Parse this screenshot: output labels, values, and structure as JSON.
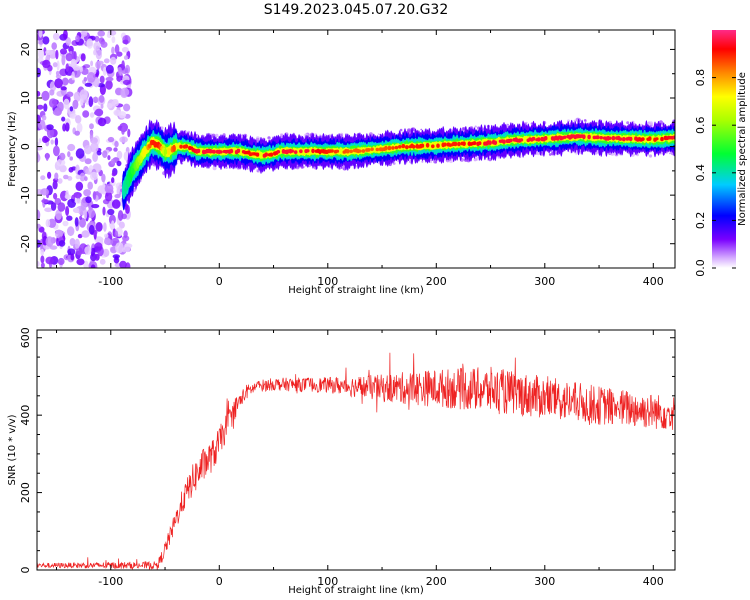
{
  "figure_title": "S149.2023.045.07.20.G32",
  "colors": {
    "axes": "#000000",
    "snr_line": "#ee2222",
    "background": "#ffffff"
  },
  "chart_data": [
    {
      "type": "heatmap",
      "name": "spectrogram",
      "xlabel": "Height of straight line (km)",
      "ylabel": "Frequency (Hz)",
      "xlim": [
        -168,
        420
      ],
      "ylim": [
        -25,
        24
      ],
      "x_ticks": [
        -100,
        0,
        100,
        200,
        300,
        400
      ],
      "y_ticks": [
        -20,
        -10,
        0,
        10,
        20
      ],
      "x_tick_labels": [
        "-100",
        "0",
        "100",
        "200",
        "300",
        "400"
      ],
      "y_tick_labels": [
        "-20",
        "-10",
        "0",
        "10",
        "20"
      ],
      "noise_region_x": [
        -168,
        -85
      ],
      "ridge": {
        "description": "dominant frequency trace",
        "x": [
          -88,
          -80,
          -70,
          -62,
          -55,
          -50,
          -45,
          -40,
          -30,
          -20,
          0,
          20,
          30,
          40,
          50,
          55,
          80,
          100,
          120,
          150,
          170,
          200,
          220,
          250,
          270,
          300,
          330,
          350,
          380,
          400,
          420
        ],
        "y_hz": [
          -9,
          -5,
          -1.5,
          0.8,
          0.2,
          -1.2,
          -0.8,
          0,
          0,
          -1,
          -1,
          -1,
          -1.5,
          -1.8,
          -1.5,
          -1,
          -1,
          -1,
          -1,
          -0.5,
          0,
          0.2,
          0.5,
          0.8,
          1.3,
          1.6,
          2.1,
          1.8,
          1.6,
          1.5,
          1.8
        ],
        "peak_amplitude": [
          0.4,
          0.5,
          0.7,
          0.9,
          0.9,
          0.6,
          0.8,
          0.9,
          0.9,
          0.95,
          0.95,
          0.95,
          0.9,
          0.95,
          0.9,
          0.95,
          0.95,
          0.9,
          0.85,
          0.85,
          0.9,
          0.9,
          0.9,
          0.95,
          0.95,
          0.95,
          0.95,
          0.95,
          0.95,
          0.9,
          0.95
        ]
      },
      "colorbar": {
        "label": "Normalized spectral amplitude",
        "range": [
          0,
          1
        ],
        "ticks": [
          0.0,
          0.2,
          0.4,
          0.6,
          0.8
        ],
        "tick_labels": [
          "0.0",
          "0.2",
          "0.4",
          "0.6",
          "0.8"
        ]
      }
    },
    {
      "type": "line",
      "name": "snr",
      "xlabel": "Height of straight line (km)",
      "ylabel": "SNR (10 * v/v)",
      "xlim": [
        -168,
        420
      ],
      "ylim": [
        0,
        620
      ],
      "x_ticks": [
        -100,
        0,
        100,
        200,
        300,
        400
      ],
      "y_ticks": [
        0,
        200,
        400,
        600
      ],
      "x_tick_labels": [
        "-100",
        "0",
        "100",
        "200",
        "300",
        "400"
      ],
      "y_tick_labels": [
        "0",
        "200",
        "400",
        "600"
      ],
      "series": [
        {
          "name": "SNR",
          "trend_x": [
            -168,
            -100,
            -60,
            -55,
            -45,
            -35,
            -25,
            -15,
            -5,
            5,
            15,
            25,
            35,
            50,
            100,
            150,
            200,
            250,
            300,
            350,
            400,
            420
          ],
          "trend_y": [
            12,
            12,
            12,
            20,
            90,
            170,
            230,
            270,
            300,
            360,
            420,
            460,
            475,
            480,
            478,
            470,
            470,
            465,
            445,
            425,
            410,
            405
          ],
          "noise_amplitude_x": [
            -168,
            -60,
            -20,
            0,
            30,
            100,
            180,
            250,
            300,
            420
          ],
          "noise_amplitude_y": [
            6,
            10,
            45,
            40,
            15,
            20,
            45,
            60,
            55,
            45
          ]
        }
      ]
    }
  ]
}
